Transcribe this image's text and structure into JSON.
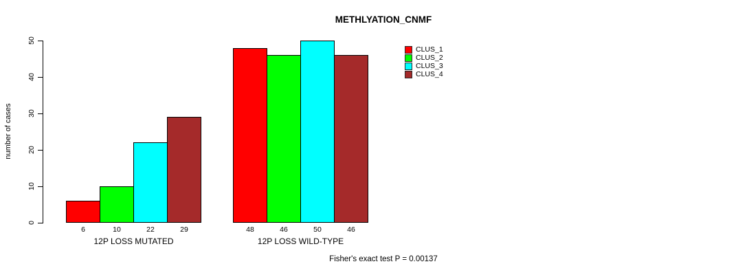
{
  "chart_data": {
    "type": "bar",
    "title": "METHLYATION_CNMF",
    "ylabel": "number of cases",
    "xlabel": "",
    "ylim": [
      0,
      50
    ],
    "yticks": [
      0,
      10,
      20,
      30,
      40,
      50
    ],
    "categories": [
      "12P LOSS MUTATED",
      "12P LOSS WILD-TYPE"
    ],
    "series": [
      {
        "name": "CLUS_1",
        "color": "#FF0000",
        "values": [
          6,
          48
        ]
      },
      {
        "name": "CLUS_2",
        "color": "#00FF00",
        "values": [
          10,
          46
        ]
      },
      {
        "name": "CLUS_3",
        "color": "#00FFFF",
        "values": [
          22,
          50
        ]
      },
      {
        "name": "CLUS_4",
        "color": "#A52A2A",
        "values": [
          29,
          46
        ]
      }
    ],
    "bar_value_labels": [
      [
        "6",
        "10",
        "22",
        "29"
      ],
      [
        "48",
        "46",
        "50",
        "46"
      ]
    ],
    "legend_position": "right",
    "grid": false,
    "annotation": "Fisher's exact test P = 0.00137"
  }
}
